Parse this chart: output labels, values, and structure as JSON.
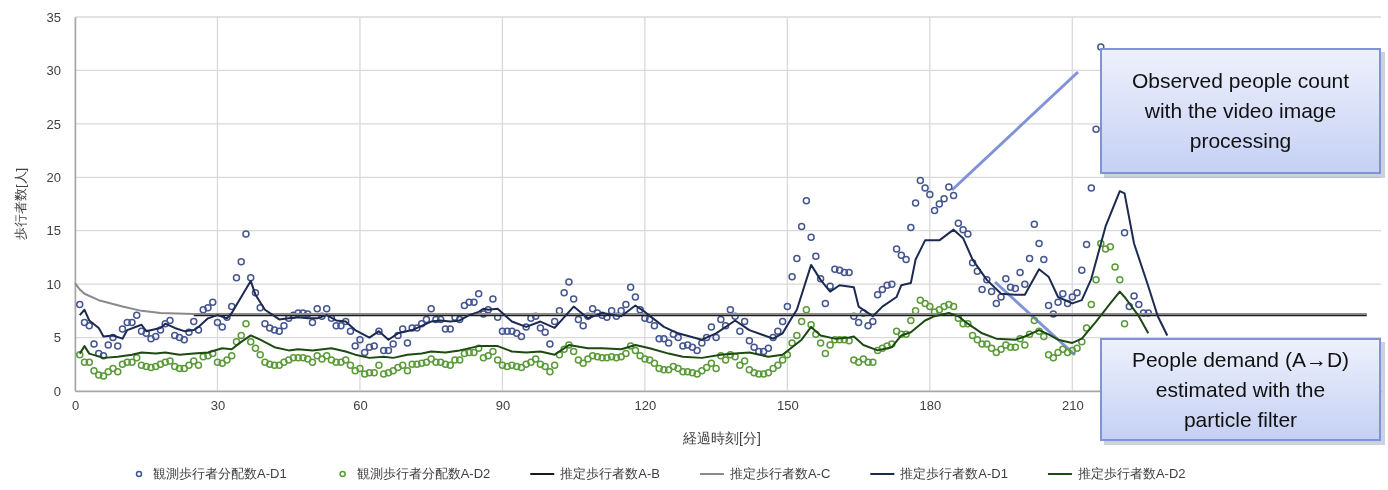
{
  "chart_data": {
    "type": "line",
    "xlabel": "経過時刻[分]",
    "ylabel": "歩行者数[人]",
    "xlim": [
      0,
      275
    ],
    "xticks": [
      0,
      30,
      60,
      90,
      120,
      150,
      180,
      210
    ],
    "ylim": [
      0,
      35
    ],
    "yticks": [
      0,
      5,
      10,
      15,
      20,
      25,
      30,
      35
    ],
    "grid": true,
    "legend": "bottom",
    "x": [
      1,
      2,
      3,
      4,
      5,
      6,
      7,
      8,
      9,
      10,
      11,
      12,
      13,
      14,
      15,
      16,
      17,
      18,
      19,
      20,
      21,
      22,
      23,
      24,
      25,
      26,
      27,
      28,
      29,
      30,
      31,
      32,
      33,
      34,
      35,
      36,
      37,
      38,
      39,
      40,
      41,
      42,
      43,
      44,
      45,
      46,
      47,
      48,
      49,
      50,
      51,
      52,
      53,
      54,
      55,
      56,
      57,
      58,
      59,
      60,
      61,
      62,
      63,
      64,
      65,
      66,
      67,
      68,
      69,
      70,
      71,
      72,
      73,
      74,
      75,
      76,
      77,
      78,
      79,
      80,
      81,
      82,
      83,
      84,
      85,
      86,
      87,
      88,
      89,
      90,
      91,
      92,
      93,
      94,
      95,
      96,
      97,
      98,
      99,
      100,
      101,
      102,
      103,
      104,
      105,
      106,
      107,
      108,
      109,
      110,
      111,
      112,
      113,
      114,
      115,
      116,
      117,
      118,
      119,
      120,
      121,
      122,
      123,
      124,
      125,
      126,
      127,
      128,
      129,
      130,
      131,
      132,
      133,
      134,
      135,
      136,
      137,
      138,
      139,
      140,
      141,
      142,
      143,
      144,
      145,
      146,
      147,
      148,
      149,
      150,
      151,
      152,
      153,
      154,
      155,
      156,
      157,
      158,
      159,
      160,
      161,
      162,
      163,
      164,
      165,
      166,
      167,
      168,
      169,
      170,
      171,
      172,
      173,
      174,
      175,
      176,
      177,
      178,
      179,
      180,
      181,
      182,
      183,
      184,
      185,
      186,
      187,
      188,
      189,
      190,
      191,
      192,
      193,
      194,
      195,
      196,
      197,
      198,
      199,
      200,
      201,
      202,
      203,
      204,
      205,
      206,
      207,
      208,
      209,
      210,
      211,
      212,
      213,
      214,
      215,
      216,
      217,
      218,
      219,
      220,
      221,
      222,
      223,
      224,
      225,
      226
    ],
    "series": [
      {
        "name": "観測歩行者分配数A-D1",
        "type": "scatter",
        "marker": "circle",
        "color": "#44558f",
        "values": [
          8.1,
          6.4,
          6.1,
          4.4,
          3.5,
          3.3,
          4.3,
          5.0,
          4.2,
          5.8,
          6.4,
          6.4,
          7.1,
          5.6,
          5.4,
          4.9,
          5.1,
          5.7,
          6.3,
          6.6,
          5.2,
          5.0,
          4.8,
          5.5,
          6.5,
          5.7,
          7.6,
          7.8,
          8.3,
          6.4,
          6.0,
          6.9,
          7.9,
          10.6,
          12.1,
          14.7,
          10.6,
          9.2,
          7.8,
          6.3,
          5.9,
          5.7,
          5.6,
          6.1,
          6.8,
          7.1,
          7.3,
          7.3,
          7.2,
          6.4,
          7.7,
          7.0,
          7.7,
          6.8,
          6.1,
          6.1,
          6.5,
          5.6,
          4.2,
          4.8,
          3.6,
          4.1,
          4.2,
          5.6,
          3.8,
          3.8,
          4.4,
          5.2,
          5.8,
          4.5,
          5.9,
          5.9,
          6.3,
          6.7,
          7.7,
          6.7,
          6.7,
          5.8,
          5.8,
          6.9,
          6.7,
          8.0,
          8.3,
          8.3,
          9.1,
          7.2,
          7.6,
          8.6,
          6.9,
          5.6,
          5.6,
          5.6,
          5.4,
          5.1,
          6.0,
          6.8,
          7.0,
          5.9,
          5.5,
          4.4,
          6.5,
          7.5,
          9.2,
          10.2,
          8.6,
          6.7,
          6.1,
          7.0,
          7.7,
          7.3,
          7.1,
          6.9,
          7.5,
          7.0,
          7.5,
          8.1,
          9.7,
          8.8,
          7.6,
          6.8,
          6.7,
          6.1,
          4.9,
          4.9,
          4.5,
          5.3,
          5.0,
          4.2,
          4.3,
          4.1,
          3.8,
          4.5,
          5.0,
          6.0,
          5.0,
          6.7,
          6.1,
          7.6,
          7.0,
          5.6,
          6.5,
          4.7,
          4.1,
          3.7,
          3.7,
          4.0,
          5.0,
          5.6,
          6.5,
          7.9,
          10.7,
          12.4,
          15.4,
          17.8,
          14.4,
          12.6,
          10.5,
          8.2,
          9.8,
          11.4,
          11.3,
          11.1,
          11.1,
          7.0,
          6.4,
          7.3,
          6.1,
          6.5,
          9.0,
          9.5,
          9.9,
          10.0,
          13.3,
          12.7,
          12.3,
          15.3,
          17.6,
          19.7,
          19.0,
          18.4,
          16.9,
          17.5,
          18.0,
          19.1,
          18.3,
          15.7,
          15.1,
          14.7,
          12.0,
          11.2,
          9.5,
          10.4,
          9.3,
          8.2,
          8.8,
          10.5,
          9.7,
          9.6,
          11.1,
          10.0,
          12.4,
          15.6,
          13.8,
          12.3,
          8.0,
          7.2,
          8.3,
          9.1,
          8.2,
          8.8,
          9.2,
          11.3,
          13.7,
          19.0,
          24.5,
          32.2,
          null,
          null,
          null,
          null,
          14.8,
          7.9,
          8.9,
          8.1,
          7.3,
          7.3
        ]
      },
      {
        "name": "観測歩行者分配数A-D2",
        "type": "scatter",
        "marker": "circle",
        "color": "#5a9a38",
        "values": [
          3.4,
          2.7,
          2.7,
          1.9,
          1.5,
          1.4,
          1.8,
          2.1,
          1.8,
          2.5,
          2.7,
          2.7,
          3.1,
          2.4,
          2.3,
          2.2,
          2.3,
          2.5,
          2.7,
          2.8,
          2.3,
          2.1,
          2.1,
          2.4,
          2.8,
          2.4,
          3.2,
          3.3,
          3.5,
          2.7,
          2.6,
          2.9,
          3.3,
          4.6,
          5.2,
          6.3,
          4.6,
          4.0,
          3.4,
          2.7,
          2.5,
          2.4,
          2.4,
          2.7,
          2.9,
          3.1,
          3.1,
          3.1,
          3.0,
          2.7,
          3.3,
          3.0,
          3.3,
          2.9,
          2.7,
          2.7,
          2.9,
          2.4,
          1.9,
          2.1,
          1.6,
          1.7,
          1.7,
          2.4,
          1.6,
          1.7,
          1.9,
          2.2,
          2.4,
          1.9,
          2.5,
          2.5,
          2.6,
          2.7,
          3.0,
          2.7,
          2.7,
          2.5,
          2.4,
          2.9,
          2.9,
          3.5,
          3.6,
          3.6,
          4.0,
          3.1,
          3.3,
          3.7,
          2.9,
          2.4,
          2.3,
          2.4,
          2.3,
          2.2,
          2.5,
          2.7,
          3.0,
          2.5,
          2.3,
          1.8,
          2.4,
          3.4,
          3.9,
          4.3,
          3.7,
          2.9,
          2.6,
          3.0,
          3.3,
          3.2,
          3.1,
          3.1,
          3.2,
          3.1,
          3.2,
          3.5,
          4.2,
          3.8,
          3.3,
          3.0,
          2.9,
          2.6,
          2.1,
          2.0,
          2.0,
          2.3,
          2.1,
          1.8,
          1.8,
          1.7,
          1.6,
          1.9,
          2.2,
          2.6,
          2.1,
          3.3,
          2.9,
          3.4,
          3.2,
          2.4,
          2.8,
          2.0,
          1.7,
          1.6,
          1.6,
          1.7,
          2.1,
          2.4,
          2.9,
          3.4,
          4.5,
          5.2,
          6.5,
          7.6,
          6.2,
          5.3,
          4.5,
          3.5,
          4.3,
          4.8,
          4.8,
          4.8,
          4.7,
          2.9,
          2.7,
          3.0,
          2.7,
          2.7,
          3.8,
          4.0,
          4.2,
          4.4,
          5.6,
          5.3,
          5.3,
          6.6,
          7.5,
          8.5,
          8.2,
          7.9,
          7.4,
          7.6,
          7.9,
          8.1,
          7.9,
          6.8,
          6.3,
          6.3,
          5.2,
          4.8,
          4.4,
          4.4,
          4.0,
          3.6,
          3.9,
          4.3,
          4.1,
          4.1,
          4.9,
          4.3,
          5.3,
          6.6,
          5.6,
          5.1,
          3.4,
          3.1,
          3.6,
          3.9,
          3.6,
          3.8,
          4.0,
          4.6,
          5.9,
          8.1,
          10.4,
          13.8,
          13.3,
          13.5,
          11.6,
          10.4,
          6.3,
          null,
          null,
          null,
          null,
          null
        ]
      },
      {
        "name": "推定歩行者数A-B",
        "color": "#1a1a1a",
        "x": [
          25,
          272
        ],
        "values": [
          7.1,
          7.1
        ]
      },
      {
        "name": "推定歩行者数A-C",
        "color": "#8a8a8a",
        "x": [
          0,
          1,
          2,
          5,
          10,
          14,
          18,
          25,
          272
        ],
        "values": [
          10.1,
          9.5,
          9.1,
          8.5,
          7.9,
          7.5,
          7.3,
          7.2,
          7.2
        ]
      },
      {
        "name": "推定歩行者数A-D1",
        "color": "#1c2a52",
        "x": [
          1,
          2,
          3,
          5,
          6,
          8,
          10,
          11,
          14,
          15,
          18,
          19,
          21,
          23,
          25,
          26,
          28,
          30,
          32,
          33,
          35,
          37,
          38,
          40,
          43,
          45,
          47,
          49,
          51,
          53,
          55,
          57,
          59,
          62,
          64,
          66,
          68,
          71,
          73,
          75,
          77,
          79,
          81,
          83,
          85,
          86,
          87,
          89,
          92,
          95,
          98,
          101,
          105,
          108,
          111,
          115,
          118,
          120,
          124,
          127,
          132,
          135,
          139,
          142,
          147,
          149,
          151,
          152,
          155,
          157,
          159,
          161,
          164,
          165,
          168,
          170,
          173,
          174,
          176,
          177,
          179,
          182,
          185,
          187,
          189,
          192,
          195,
          198,
          200,
          203,
          205,
          207,
          210,
          212,
          214,
          217,
          220,
          221,
          223,
          226,
          228,
          230
        ],
        "values": [
          7.1,
          7.6,
          6.6,
          5.9,
          5.1,
          5.2,
          4.9,
          5.7,
          6.2,
          5.6,
          5.9,
          6.3,
          5.9,
          5.6,
          5.7,
          6.0,
          6.8,
          7.1,
          6.8,
          7.3,
          8.8,
          10.3,
          9.0,
          7.6,
          6.7,
          6.8,
          6.9,
          6.8,
          6.8,
          7.1,
          6.6,
          6.5,
          5.7,
          5.0,
          5.6,
          4.8,
          5.4,
          5.7,
          6.1,
          6.5,
          6.6,
          6.5,
          6.6,
          7.1,
          7.4,
          7.7,
          7.6,
          7.7,
          6.5,
          6.0,
          6.5,
          5.9,
          7.9,
          6.8,
          7.3,
          7.0,
          8.0,
          7.4,
          6.0,
          5.4,
          4.8,
          5.4,
          6.6,
          5.7,
          4.9,
          5.4,
          6.9,
          7.6,
          11.8,
          10.4,
          9.3,
          9.9,
          9.7,
          7.9,
          7.0,
          7.9,
          8.8,
          9.9,
          10.1,
          12.3,
          14.1,
          14.1,
          15.1,
          14.3,
          12.3,
          10.4,
          9.1,
          9.0,
          9.0,
          11.4,
          10.7,
          8.8,
          8.2,
          8.5,
          10.5,
          15.4,
          18.7,
          18.5,
          13.8,
          9.8,
          7.0,
          5.2
        ]
      },
      {
        "name": "推定歩行者数A-D2",
        "color": "#1d4a12",
        "x": [
          1,
          2,
          3,
          6,
          9,
          12,
          14,
          17,
          19,
          22,
          25,
          28,
          31,
          33,
          35,
          37,
          39,
          42,
          45,
          47,
          50,
          54,
          57,
          59,
          62,
          65,
          67,
          70,
          73,
          75,
          78,
          81,
          85,
          86,
          89,
          92,
          95,
          98,
          101,
          104,
          108,
          111,
          115,
          118,
          121,
          125,
          128,
          132,
          136,
          139,
          142,
          146,
          149,
          153,
          155,
          157,
          160,
          163,
          164,
          166,
          169,
          172,
          174,
          176,
          179,
          181,
          184,
          186,
          188,
          191,
          194,
          198,
          200,
          203,
          205,
          207,
          210,
          212,
          215,
          218,
          220,
          221,
          224,
          226
        ],
        "values": [
          3.5,
          4.2,
          3.5,
          3.1,
          3.2,
          3.4,
          3.6,
          3.5,
          3.6,
          3.4,
          3.5,
          3.6,
          4.0,
          3.9,
          4.6,
          5.2,
          4.8,
          4.1,
          3.8,
          3.9,
          3.8,
          4.0,
          3.7,
          3.4,
          3.1,
          3.2,
          3.1,
          3.4,
          3.5,
          3.7,
          3.6,
          3.8,
          4.2,
          4.2,
          4.2,
          3.7,
          3.6,
          3.7,
          3.4,
          4.3,
          4.0,
          4.0,
          3.9,
          4.3,
          4.0,
          3.5,
          3.2,
          3.1,
          3.4,
          3.5,
          3.6,
          3.2,
          3.4,
          4.8,
          6.0,
          5.2,
          4.9,
          5.0,
          5.1,
          4.3,
          3.8,
          4.1,
          5.2,
          5.5,
          6.6,
          7.0,
          7.3,
          7.0,
          6.3,
          5.4,
          4.9,
          4.8,
          5.1,
          5.7,
          5.3,
          4.8,
          4.5,
          4.9,
          6.5,
          8.2,
          9.3,
          8.8,
          7.0,
          5.4
        ]
      }
    ],
    "annotations": [
      "Observed people count with the video image processing",
      "People demand (A→D) estimated with the particle filter"
    ]
  }
}
